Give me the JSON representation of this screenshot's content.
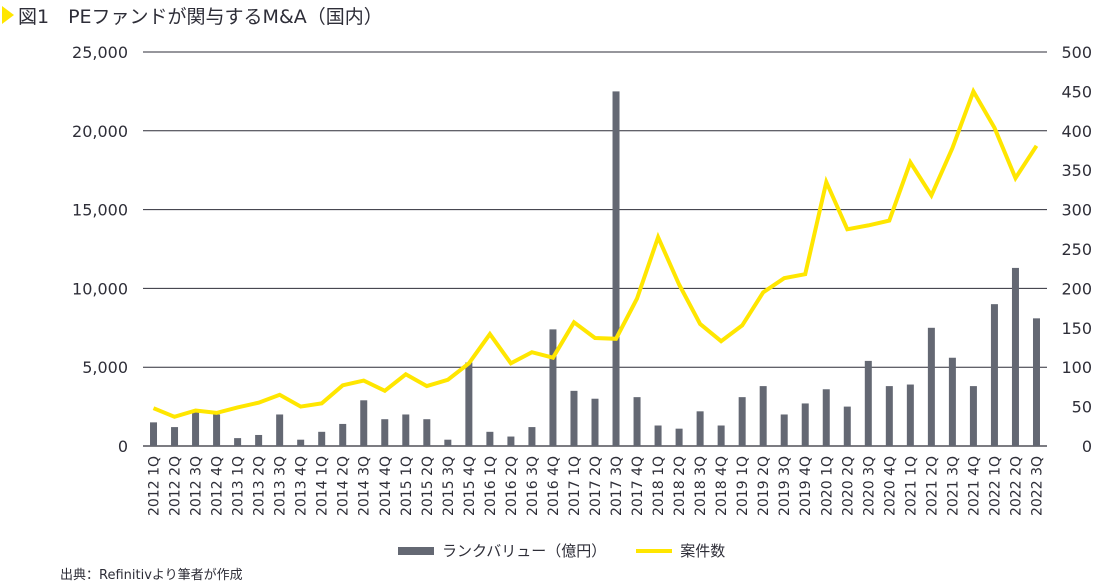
{
  "header": {
    "title": "図1　PEファンドが関与するM&A（国内）"
  },
  "source": "出典：Refinitivより筆者が作成",
  "legend": {
    "bar_label": "ランクバリュー（億円）",
    "line_label": "案件数"
  },
  "colors": {
    "bar": "#646873",
    "line": "#ffe600",
    "grid": "#2e2e38",
    "text": "#2e2e38"
  },
  "chart_data": {
    "type": "bar+line",
    "categories": [
      "2012 1Q",
      "2012 2Q",
      "2012 3Q",
      "2012 4Q",
      "2013 1Q",
      "2013 2Q",
      "2013 3Q",
      "2013 4Q",
      "2014 1Q",
      "2014 2Q",
      "2014 3Q",
      "2014 4Q",
      "2015 1Q",
      "2015 2Q",
      "2015 3Q",
      "2015 4Q",
      "2016 1Q",
      "2016 2Q",
      "2016 3Q",
      "2016 4Q",
      "2017 1Q",
      "2017 2Q",
      "2017 3Q",
      "2017 4Q",
      "2018 1Q",
      "2018 2Q",
      "2018 3Q",
      "2018 4Q",
      "2019 1Q",
      "2019 2Q",
      "2019 3Q",
      "2019 4Q",
      "2020 1Q",
      "2020 2Q",
      "2020 3Q",
      "2020 4Q",
      "2021 1Q",
      "2021 2Q",
      "2021 3Q",
      "2021 4Q",
      "2022 1Q",
      "2022 2Q",
      "2022 3Q"
    ],
    "series": [
      {
        "name": "ランクバリュー（億円）",
        "type": "bar",
        "axis": "left",
        "values": [
          1500,
          1200,
          2200,
          2000,
          500,
          700,
          2000,
          400,
          900,
          1400,
          2900,
          1700,
          2000,
          1700,
          400,
          5300,
          900,
          600,
          1200,
          7400,
          3500,
          3000,
          22500,
          3100,
          1300,
          1100,
          2200,
          1300,
          3100,
          3800,
          2000,
          2700,
          3600,
          2500,
          5400,
          3800,
          3900,
          7500,
          5600,
          3800,
          9000,
          11300,
          8100
        ]
      },
      {
        "name": "案件数",
        "type": "line",
        "axis": "right",
        "values": [
          48,
          37,
          45,
          42,
          49,
          55,
          65,
          50,
          54,
          77,
          83,
          70,
          91,
          76,
          84,
          105,
          142,
          105,
          119,
          112,
          157,
          137,
          136,
          187,
          265,
          205,
          155,
          133,
          153,
          195,
          213,
          218,
          335,
          275,
          280,
          286,
          360,
          318,
          378,
          450,
          404,
          340,
          381
        ]
      }
    ],
    "y_left": {
      "min": 0,
      "max": 25000,
      "ticks": [
        "0",
        "5,000",
        "10,000",
        "15,000",
        "20,000",
        "25,000"
      ]
    },
    "y_right": {
      "min": 0,
      "max": 500,
      "ticks": [
        "0",
        "50",
        "100",
        "150",
        "200",
        "250",
        "300",
        "350",
        "400",
        "450",
        "500"
      ]
    },
    "grid": true,
    "legend_position": "bottom"
  }
}
